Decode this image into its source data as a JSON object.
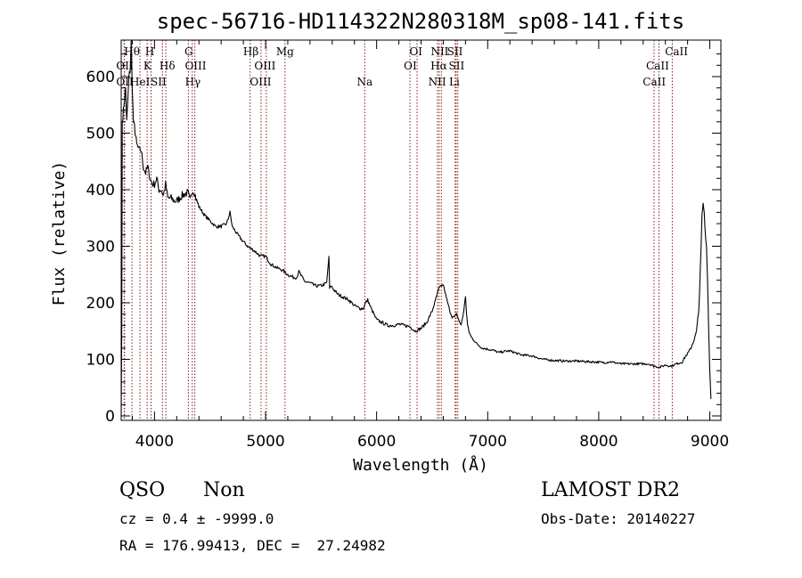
{
  "chart_data": {
    "type": "line",
    "title": "spec-56716-HD114322N280318M_sp08-141.fits",
    "xlabel": "Wavelength (Å)",
    "ylabel": "Flux (relative)",
    "xlim": [
      3700,
      9100
    ],
    "ylim": [
      0,
      660
    ],
    "xticks": [
      4000,
      5000,
      6000,
      7000,
      8000,
      9000
    ],
    "yticks": [
      0,
      100,
      200,
      300,
      400,
      500,
      600
    ],
    "grid": false,
    "series": [
      {
        "x": [
          3700,
          3705,
          3710,
          3720,
          3730,
          3740,
          3750,
          3760,
          3770,
          3780,
          3790,
          3800,
          3810,
          3820,
          3830,
          3840,
          3860,
          3880,
          3900,
          3920,
          3940,
          3960,
          3980,
          4000,
          4020,
          4040,
          4060,
          4080,
          4100,
          4120,
          4150,
          4180,
          4200,
          4250,
          4300,
          4320,
          4340,
          4360,
          4380,
          4400,
          4450,
          4500,
          4550,
          4600,
          4650,
          4680,
          4700,
          4750,
          4800,
          4850,
          4900,
          4950,
          5000,
          5050,
          5100,
          5150,
          5200,
          5250,
          5280,
          5300,
          5350,
          5400,
          5450,
          5500,
          5550,
          5570,
          5577,
          5590,
          5620,
          5650,
          5700,
          5750,
          5800,
          5850,
          5880,
          5900,
          5920,
          5950,
          6000,
          6050,
          6100,
          6150,
          6200,
          6250,
          6300,
          6350,
          6400,
          6450,
          6500,
          6530,
          6560,
          6580,
          6600,
          6620,
          6640,
          6660,
          6680,
          6700,
          6720,
          6740,
          6760,
          6780,
          6800,
          6810,
          6820,
          6830,
          6850,
          6900,
          6950,
          7000,
          7050,
          7100,
          7150,
          7200,
          7300,
          7400,
          7500,
          7600,
          7700,
          7800,
          7900,
          8000,
          8050,
          8100,
          8200,
          8300,
          8400,
          8450,
          8500,
          8550,
          8600,
          8650,
          8700,
          8750,
          8780,
          8800,
          8830,
          8860,
          8880,
          8900,
          8910,
          8920,
          8930,
          8940,
          8950,
          8960,
          8970,
          8980,
          8990,
          9000,
          9010
        ],
        "y": [
          0,
          150,
          520,
          540,
          560,
          580,
          520,
          560,
          600,
          610,
          660,
          580,
          520,
          510,
          495,
          480,
          470,
          470,
          440,
          430,
          440,
          420,
          410,
          410,
          420,
          400,
          400,
          390,
          410,
          385,
          385,
          380,
          380,
          390,
          395,
          380,
          400,
          395,
          380,
          370,
          355,
          345,
          335,
          335,
          340,
          360,
          335,
          320,
          308,
          298,
          292,
          283,
          282,
          268,
          262,
          258,
          250,
          245,
          245,
          255,
          238,
          235,
          230,
          230,
          235,
          280,
          225,
          230,
          222,
          215,
          210,
          205,
          195,
          190,
          190,
          200,
          205,
          190,
          170,
          165,
          160,
          160,
          162,
          160,
          158,
          150,
          155,
          165,
          185,
          205,
          225,
          230,
          232,
          215,
          200,
          185,
          175,
          175,
          180,
          170,
          160,
          180,
          210,
          180,
          160,
          150,
          140,
          128,
          120,
          118,
          116,
          112,
          114,
          115,
          108,
          106,
          100,
          98,
          97,
          97,
          96,
          95,
          94,
          96,
          92,
          92,
          92,
          92,
          88,
          86,
          90,
          88,
          92,
          95,
          105,
          110,
          120,
          135,
          150,
          185,
          230,
          290,
          355,
          375,
          360,
          320,
          300,
          240,
          150,
          80,
          30
        ]
      }
    ],
    "lines": [
      {
        "x": 3797,
        "label": "Hθ",
        "row": 0,
        "lx": 3797
      },
      {
        "x": 3727,
        "label": "OII",
        "row": 1,
        "lx": 3732
      },
      {
        "x": 3730,
        "label": "OII",
        "row": 2,
        "lx": 3732
      },
      {
        "x": 3869,
        "label": "HeI",
        "row": 2,
        "lx": 3870
      },
      {
        "x": 3934,
        "label": "K",
        "row": 1,
        "lx": 3936
      },
      {
        "x": 3969,
        "label": "H",
        "row": 0,
        "lx": 3958
      },
      {
        "x": 4072,
        "label": "SII",
        "row": 2,
        "lx": 4036
      },
      {
        "x": 4102,
        "label": "Hδ",
        "row": 1,
        "lx": 4115
      },
      {
        "x": 4305,
        "label": "G",
        "row": 0,
        "lx": 4308
      },
      {
        "x": 4340,
        "label": "Hγ",
        "row": 2,
        "lx": 4345
      },
      {
        "x": 4363,
        "label": "OIII",
        "row": 1,
        "lx": 4370
      },
      {
        "x": 4861,
        "label": "Hβ",
        "row": 0,
        "lx": 4868
      },
      {
        "x": 4959,
        "label": "OIII",
        "row": 2,
        "lx": 4955
      },
      {
        "x": 5007,
        "label": "OIII",
        "row": 1,
        "lx": 4995
      },
      {
        "x": 5175,
        "label": "Mg",
        "row": 0,
        "lx": 5175
      },
      {
        "x": 5893,
        "label": "Na",
        "row": 2,
        "lx": 5893
      },
      {
        "x": 6300,
        "label": "OI",
        "row": 1,
        "lx": 6303
      },
      {
        "x": 6364,
        "label": "OI",
        "row": 0,
        "lx": 6354
      },
      {
        "x": 6548,
        "label": "NII",
        "row": 2,
        "lx": 6545
      },
      {
        "x": 6563,
        "label": "Hα",
        "row": 1,
        "lx": 6560
      },
      {
        "x": 6583,
        "label": "NII",
        "row": 0,
        "lx": 6568
      },
      {
        "x": 6707,
        "label": "Li",
        "row": 2,
        "lx": 6700
      },
      {
        "x": 6716,
        "label": "SII",
        "row": 1,
        "lx": 6720
      },
      {
        "x": 6731,
        "label": "SII",
        "row": 0,
        "lx": 6705
      },
      {
        "x": 8498,
        "label": "CaII",
        "row": 2,
        "lx": 8500
      },
      {
        "x": 8542,
        "label": "CaII",
        "row": 1,
        "lx": 8530
      },
      {
        "x": 8662,
        "label": "CaII",
        "row": 0,
        "lx": 8700
      }
    ]
  },
  "info": {
    "class_label": "QSO",
    "subclass_label": "Non",
    "survey": "LAMOST DR2",
    "cz": "cz = 0.4 ± -9999.0",
    "obs_date": "Obs-Date: 20140227",
    "coords": "RA = 176.99413, DEC =  27.24982"
  }
}
